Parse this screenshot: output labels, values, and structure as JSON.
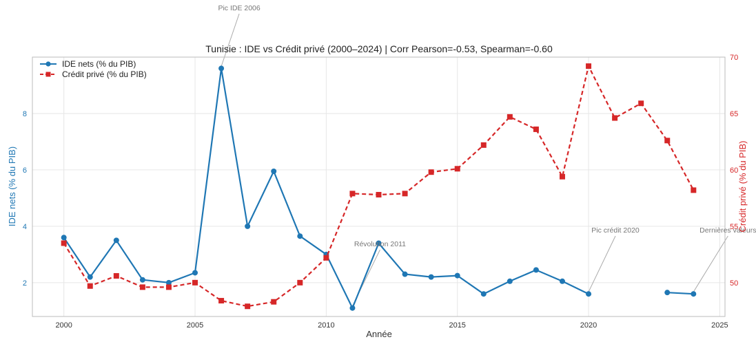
{
  "chart_data": {
    "type": "line",
    "title": "Tunisie : IDE vs Crédit privé (2000–2024) | Corr Pearson=-0.53, Spearman=-0.60",
    "xlabel": "Année",
    "ylabel_left": "IDE nets (% du PIB)",
    "ylabel_right": "Crédit privé (% du PIB)",
    "xlim": [
      1998.8,
      2025.2
    ],
    "ylim_left": [
      0.8,
      10.0
    ],
    "ylim_right": [
      47.0,
      70.0
    ],
    "x_ticks": [
      2000,
      2005,
      2010,
      2015,
      2020,
      2025
    ],
    "y_ticks_left": [
      2,
      4,
      6,
      8
    ],
    "y_ticks_right": [
      50,
      55,
      60,
      65,
      70
    ],
    "grid": true,
    "legend_position": "top-left",
    "series": [
      {
        "name": "IDE nets (% du PIB)",
        "axis": "left",
        "color": "#1f77b4",
        "style": "solid",
        "marker": "circle",
        "x": [
          2000,
          2001,
          2002,
          2003,
          2004,
          2005,
          2006,
          2007,
          2008,
          2009,
          2010,
          2011,
          2012,
          2013,
          2014,
          2015,
          2016,
          2017,
          2018,
          2019,
          2020,
          2021,
          2022,
          2023,
          2024
        ],
        "values": [
          3.6,
          2.2,
          3.5,
          2.1,
          2.0,
          2.35,
          9.6,
          4.0,
          5.95,
          3.65,
          3.0,
          1.1,
          3.4,
          2.3,
          2.2,
          2.25,
          1.6,
          2.05,
          2.45,
          2.05,
          1.6,
          null,
          null,
          1.65,
          1.6
        ]
      },
      {
        "name": "Crédit privé (% du PIB)",
        "axis": "right",
        "color": "#d62728",
        "style": "dashed",
        "marker": "square",
        "x": [
          2000,
          2001,
          2002,
          2003,
          2004,
          2005,
          2006,
          2007,
          2008,
          2009,
          2010,
          2011,
          2012,
          2013,
          2014,
          2015,
          2016,
          2017,
          2018,
          2019,
          2020,
          2021,
          2022,
          2023,
          2024
        ],
        "values": [
          53.5,
          49.7,
          50.6,
          49.6,
          49.6,
          50.0,
          48.4,
          47.9,
          48.3,
          50.0,
          52.2,
          57.9,
          57.8,
          57.9,
          59.8,
          60.1,
          62.2,
          64.7,
          63.6,
          59.4,
          69.2,
          64.6,
          65.9,
          62.6,
          58.2
        ]
      }
    ],
    "annotations": [
      {
        "text": "Pic IDE 2006",
        "x": 2006,
        "y": 9.6,
        "axis": "left"
      },
      {
        "text": "Révolution 2011",
        "x": 2011,
        "y": 1.1,
        "axis": "left"
      },
      {
        "text": "Pic crédit 2020",
        "x": 2020,
        "y": 1.6,
        "axis": "left"
      },
      {
        "text": "Dernières valeurs",
        "x": 2024,
        "y": 1.6,
        "axis": "left"
      }
    ]
  }
}
